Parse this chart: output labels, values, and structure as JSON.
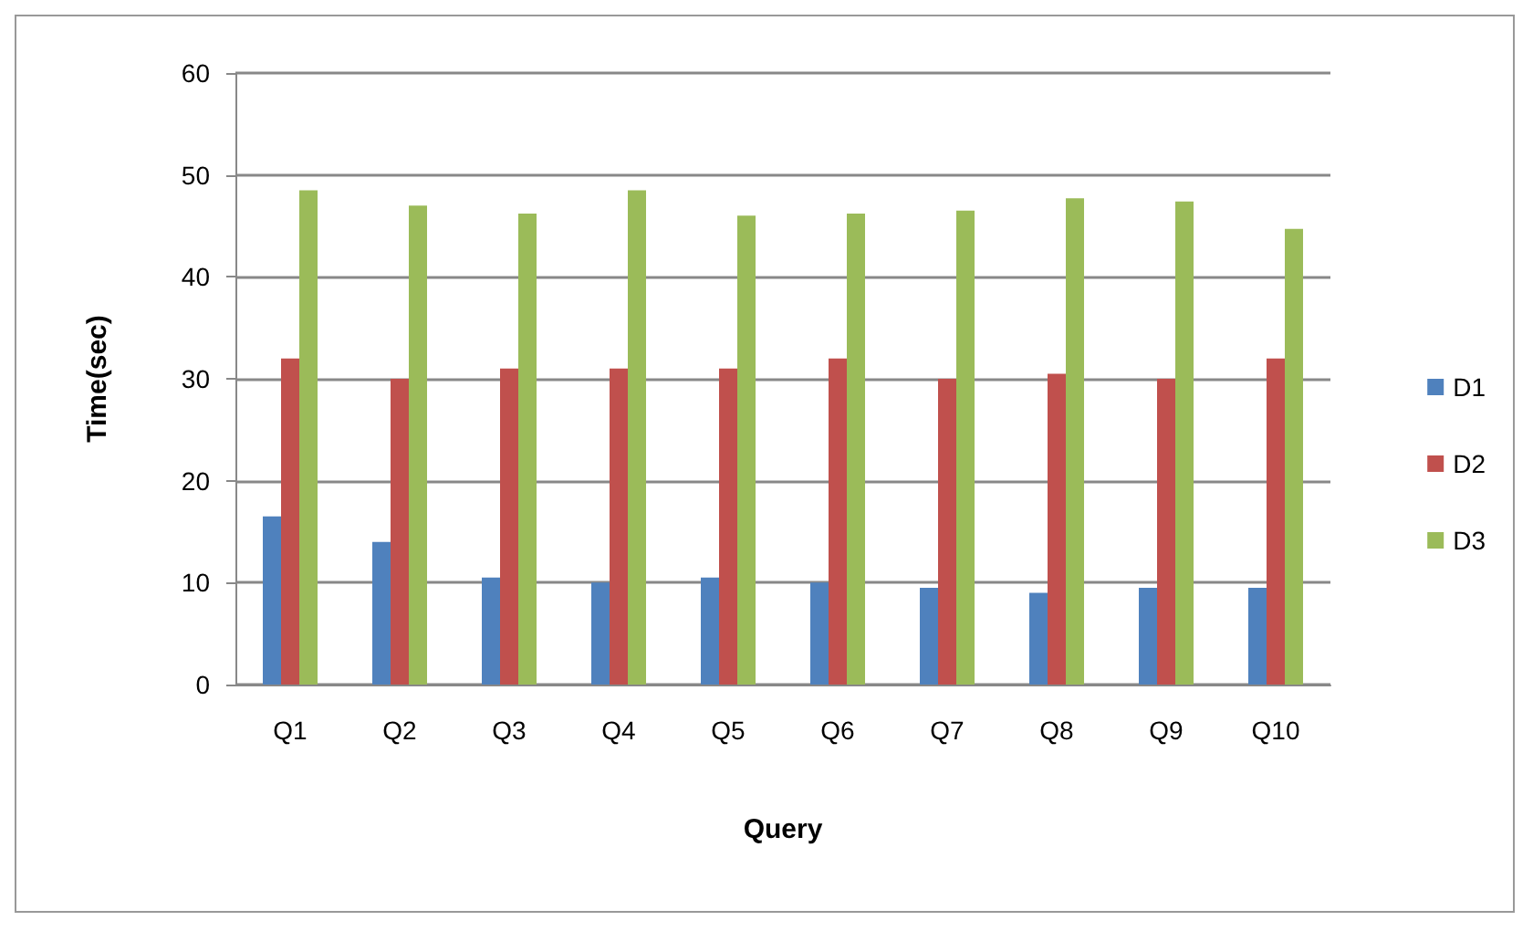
{
  "chart_data": {
    "type": "bar",
    "xlabel": "Query",
    "ylabel": "Time(sec)",
    "categories": [
      "Q1",
      "Q2",
      "Q3",
      "Q4",
      "Q5",
      "Q6",
      "Q7",
      "Q8",
      "Q9",
      "Q10"
    ],
    "series": [
      {
        "name": "D1",
        "color": "#4f81bd",
        "values": [
          16.5,
          14,
          10.5,
          10,
          10.5,
          10,
          9.5,
          9,
          9.5,
          9.5
        ]
      },
      {
        "name": "D2",
        "color": "#c0504d",
        "values": [
          32,
          30,
          31,
          31,
          31,
          32,
          30,
          30.5,
          30,
          32
        ]
      },
      {
        "name": "D3",
        "color": "#9bbb59",
        "values": [
          48.5,
          47,
          46.2,
          48.5,
          46,
          46.2,
          46.5,
          47.7,
          47.4,
          44.7
        ]
      }
    ],
    "ylim": [
      0,
      60
    ],
    "yticks": [
      0,
      10,
      20,
      30,
      40,
      50,
      60
    ],
    "grid": "y",
    "legend": "right"
  }
}
